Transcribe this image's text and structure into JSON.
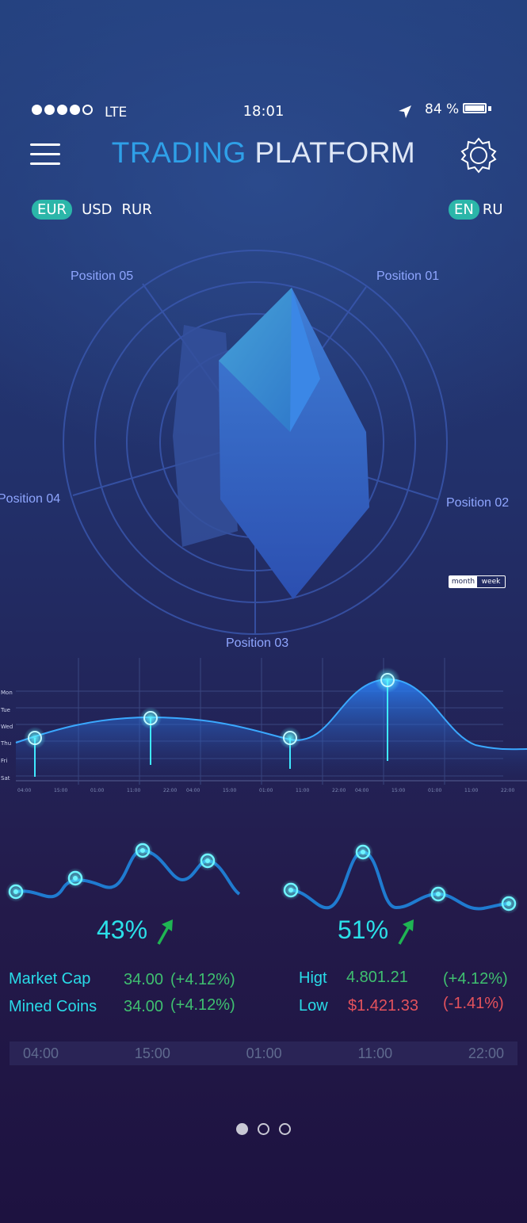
{
  "status_bar": {
    "carrier": "LTE",
    "time": "18:01",
    "battery_pct": "84 %",
    "signal_bars_filled": 4,
    "signal_bars_total": 5
  },
  "header": {
    "title_part1": "TRADING",
    "title_part2": "PLATFORM",
    "menu_icon": "hamburger-icon",
    "settings_icon": "gear-icon"
  },
  "currencies": {
    "items": [
      "EUR",
      "USD",
      "RUR"
    ],
    "selected": "EUR"
  },
  "languages": {
    "items": [
      "EN",
      "RU"
    ],
    "selected": "EN"
  },
  "radar": {
    "labels": [
      "Position 01",
      "Position 02",
      "Position 03",
      "Position 04",
      "Position 05"
    ]
  },
  "period_toggle": {
    "options": [
      "month",
      "week"
    ],
    "selected": "month"
  },
  "week_chart": {
    "days": [
      "Mon",
      "Tue",
      "Wed",
      "Thu",
      "Fri",
      "Sat"
    ],
    "time_ticks": [
      "04:00",
      "15:00",
      "01:00",
      "11:00",
      "22:00",
      "04:00",
      "15:00",
      "01:00",
      "11:00",
      "22:00",
      "04:00",
      "15:00",
      "01:00",
      "11:00",
      "22:00"
    ]
  },
  "stats": {
    "left_pct": "43%",
    "right_pct": "51%",
    "market_cap_label": "Market Cap",
    "market_cap_value": "34.00",
    "market_cap_change": "(+4.12%)",
    "mined_coins_label": "Mined Coins",
    "mined_coins_value": "34.00",
    "mined_coins_change": "(+4.12%)",
    "high_label": "Higt",
    "high_value": "4.801.21",
    "high_change": "(+4.12%)",
    "low_label": "Low",
    "low_value": "$1.421.33",
    "low_change": "(-1.41%)"
  },
  "timeline": [
    "04:00",
    "15:00",
    "01:00",
    "11:00",
    "22:00"
  ],
  "pager": {
    "count": 3,
    "active": 0
  },
  "colors": {
    "accent_cyan": "#29dbe8",
    "title_blue": "#2fa0e8",
    "pill_teal": "#2bb6a9",
    "positive_green": "#3fc070",
    "negative_red": "#e4525c"
  }
}
